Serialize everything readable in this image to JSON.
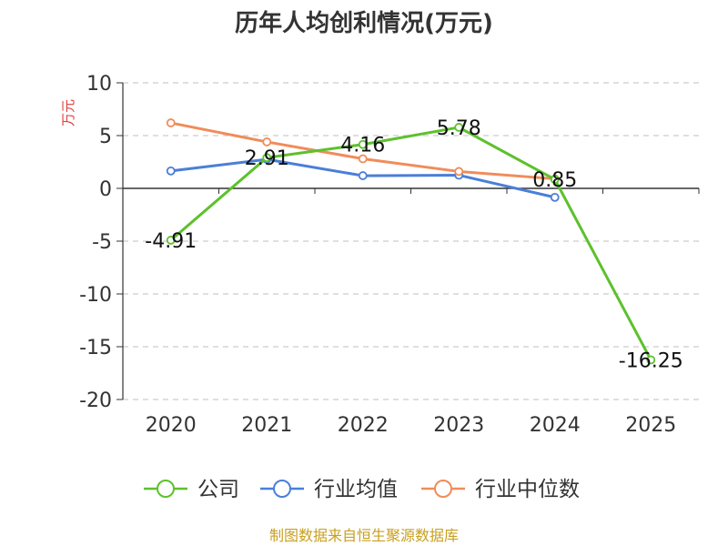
{
  "chart_data": {
    "type": "line",
    "title": "历年人均创利情况(万元)",
    "ylabel": "万元",
    "x": [
      "2020",
      "2021",
      "2022",
      "2023",
      "2024",
      "2025"
    ],
    "ylim": [
      -20,
      10
    ],
    "yticks": [
      10,
      5,
      0,
      -5,
      -10,
      -15,
      -20
    ],
    "grid": true,
    "legend_position": "bottom",
    "series": [
      {
        "name": "公司",
        "color": "#5cc12c",
        "values": [
          -4.91,
          2.91,
          4.16,
          5.78,
          0.85,
          -16.25
        ],
        "labels": [
          "-4.91",
          "2.91",
          "4.16",
          "5.78",
          "0.85",
          "-16.25"
        ]
      },
      {
        "name": "行业均值",
        "color": "#4a7fd8",
        "values": [
          1.65,
          2.75,
          1.2,
          1.25,
          -0.85,
          null
        ]
      },
      {
        "name": "行业中位数",
        "color": "#f08c5a",
        "values": [
          6.2,
          4.4,
          2.8,
          1.6,
          0.9,
          null
        ]
      }
    ]
  },
  "source": "制图数据来自恒生聚源数据库"
}
